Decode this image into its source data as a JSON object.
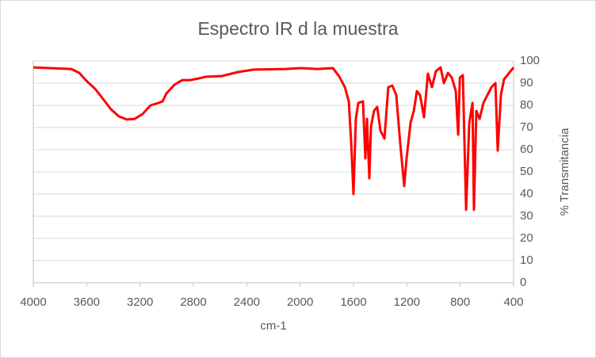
{
  "chart_data": {
    "type": "line",
    "title": "Espectro IR d la muestra",
    "x_label": "cm-1",
    "y_label": "% Transmitancia",
    "x": [
      4000,
      3715,
      3655,
      3596,
      3537,
      3477,
      3418,
      3358,
      3299,
      3240,
      3180,
      3121,
      3061,
      3031,
      3002,
      2942,
      2883,
      2824,
      2764,
      2705,
      2586,
      2467,
      2348,
      2111,
      1992,
      1873,
      1754,
      1706,
      1665,
      1635,
      1617,
      1600,
      1582,
      1564,
      1529,
      1511,
      1499,
      1481,
      1469,
      1446,
      1422,
      1398,
      1368,
      1339,
      1309,
      1279,
      1250,
      1220,
      1202,
      1172,
      1148,
      1125,
      1101,
      1071,
      1042,
      1012,
      982,
      947,
      922,
      892,
      863,
      833,
      815,
      803,
      780,
      756,
      732,
      708,
      697,
      679,
      655,
      626,
      596,
      566,
      536,
      519,
      495,
      471,
      447,
      400
    ],
    "series": [
      {
        "name": "% Transmitancia",
        "color": "#ff0000",
        "values": [
          97.1,
          96.4,
          94.6,
          90.7,
          87.5,
          82.9,
          78.2,
          75,
          73.6,
          73.9,
          76.1,
          80,
          81.1,
          81.8,
          85.4,
          89.3,
          91.4,
          91.4,
          92.1,
          92.9,
          93.2,
          95,
          96.1,
          96.4,
          96.8,
          96.4,
          96.8,
          92.9,
          88.2,
          81.8,
          63.2,
          40,
          73.9,
          81.1,
          81.8,
          56.1,
          73.9,
          47.1,
          70.4,
          77.5,
          79.3,
          68.6,
          65,
          88.2,
          88.9,
          84.6,
          63.2,
          43.6,
          56.1,
          72.1,
          77.5,
          86.4,
          84.6,
          74.6,
          94.3,
          88.2,
          95.4,
          97.1,
          90,
          94.6,
          92.5,
          86.4,
          66.8,
          92.5,
          93.6,
          32.9,
          72.1,
          81.1,
          32.9,
          77.5,
          73.9,
          81.1,
          84.6,
          88.2,
          90,
          59.6,
          84.6,
          91.8,
          93.6,
          97.1
        ]
      }
    ],
    "xlim": [
      4000,
      400
    ],
    "xticks": [
      4000,
      3600,
      3200,
      2800,
      2400,
      2000,
      1600,
      1200,
      800,
      400
    ],
    "ylim": [
      0,
      100
    ],
    "yticks": [
      0,
      10,
      20,
      30,
      40,
      50,
      60,
      70,
      80,
      90,
      100
    ],
    "grid": true
  }
}
